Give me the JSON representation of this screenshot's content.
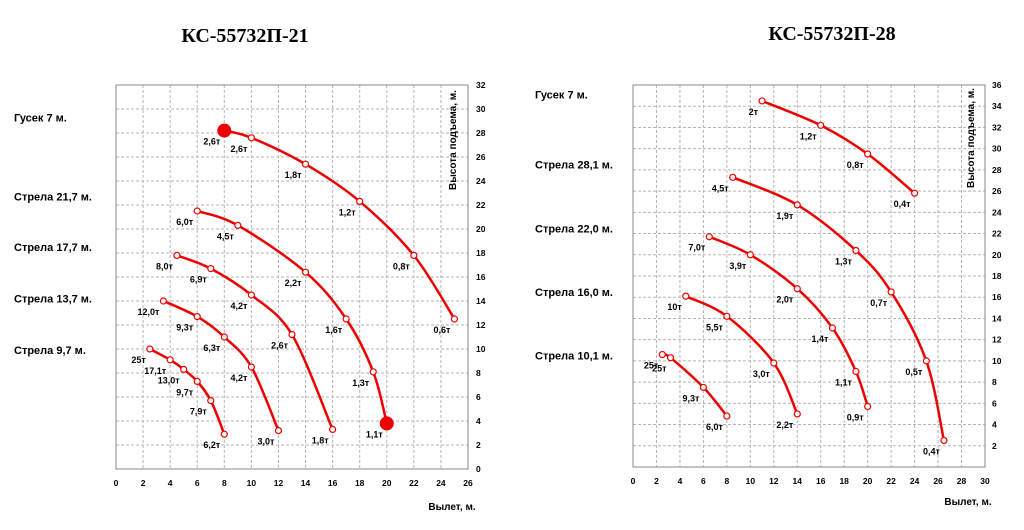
{
  "chart_data": [
    {
      "type": "line",
      "title": "КС-55732П-21",
      "xlabel": "Вылет, м.",
      "ylabel": "Высота подъема, м.",
      "xlim": [
        0,
        26
      ],
      "ylim": [
        0,
        32
      ],
      "xticks": [
        "0",
        "2",
        "4",
        "6",
        "8",
        "10",
        "12",
        "14",
        "16",
        "18",
        "20",
        "22",
        "24",
        "26"
      ],
      "yticks": [
        "0",
        "2",
        "4",
        "6",
        "8",
        "10",
        "12",
        "14",
        "16",
        "18",
        "20",
        "22",
        "24",
        "26",
        "28",
        "30",
        "32"
      ],
      "grid": true,
      "series": [
        {
          "name": "Гусек 7 м.",
          "name_y": 29.3,
          "points": [
            {
              "x": 8,
              "y": 28.2,
              "label": "2,6т"
            },
            {
              "x": 10,
              "y": 27.6,
              "label": "2,6т"
            },
            {
              "x": 14,
              "y": 25.4,
              "label": "1,8т"
            },
            {
              "x": 18,
              "y": 22.3,
              "label": "1,2т"
            },
            {
              "x": 22,
              "y": 17.8,
              "label": "0,8т"
            },
            {
              "x": 25,
              "y": 12.5,
              "label": "0,6т"
            }
          ]
        },
        {
          "name": "Стрела 21,7 м.",
          "name_y": 22.7,
          "points": [
            {
              "x": 6,
              "y": 21.5,
              "label": "6,0т"
            },
            {
              "x": 9,
              "y": 20.3,
              "label": "4,5т"
            },
            {
              "x": 14,
              "y": 16.4,
              "label": "2,2т"
            },
            {
              "x": 17,
              "y": 12.5,
              "label": "1,6т"
            },
            {
              "x": 19,
              "y": 8.1,
              "label": "1,3т"
            },
            {
              "x": 20,
              "y": 3.8,
              "label": "1,1т"
            }
          ]
        },
        {
          "name": "Стрела 17,7 м.",
          "name_y": 18.5,
          "points": [
            {
              "x": 4.5,
              "y": 17.8,
              "label": "8,0т"
            },
            {
              "x": 7,
              "y": 16.7,
              "label": "6,9т"
            },
            {
              "x": 10,
              "y": 14.5,
              "label": "4,2т"
            },
            {
              "x": 13,
              "y": 11.2,
              "label": "2,6т"
            },
            {
              "x": 16,
              "y": 3.3,
              "label": "1,8т"
            }
          ]
        },
        {
          "name": "Стрела 13,7 м.",
          "name_y": 14.2,
          "points": [
            {
              "x": 3.5,
              "y": 14.0,
              "label": "12,0т"
            },
            {
              "x": 6,
              "y": 12.7,
              "label": "9,3т"
            },
            {
              "x": 8,
              "y": 11.0,
              "label": "6,3т"
            },
            {
              "x": 10,
              "y": 8.5,
              "label": "4,2т"
            },
            {
              "x": 12,
              "y": 3.2,
              "label": "3,0т"
            }
          ]
        },
        {
          "name": "Стрела 9,7 м.",
          "name_y": 9.9,
          "points": [
            {
              "x": 2.5,
              "y": 10.0,
              "label": "25т"
            },
            {
              "x": 4,
              "y": 9.1,
              "label": "17,1т"
            },
            {
              "x": 5,
              "y": 8.3,
              "label": "13,0т"
            },
            {
              "x": 6,
              "y": 7.3,
              "label": "9,7т"
            },
            {
              "x": 7,
              "y": 5.7,
              "label": "7,9т"
            },
            {
              "x": 8,
              "y": 2.9,
              "label": "6,2т"
            }
          ]
        }
      ],
      "highlights": [
        {
          "x": 8,
          "y": 28.2
        },
        {
          "x": 20,
          "y": 3.8
        }
      ]
    },
    {
      "type": "line",
      "title": "КС-55732П-28",
      "xlabel": "Вылет, м.",
      "ylabel": "Высота подъема, м.",
      "xlim": [
        0,
        30
      ],
      "ylim": [
        0,
        36
      ],
      "xticks": [
        "0",
        "2",
        "4",
        "6",
        "8",
        "10",
        "12",
        "14",
        "16",
        "18",
        "20",
        "22",
        "24",
        "26",
        "28",
        "30"
      ],
      "yticks": [
        "",
        "2",
        "4",
        "6",
        "8",
        "10",
        "12",
        "14",
        "16",
        "18",
        "20",
        "22",
        "24",
        "26",
        "28",
        "30",
        "32",
        "34",
        "36"
      ],
      "grid": true,
      "series": [
        {
          "name": "Гусек 7 м.",
          "name_y": 35.1,
          "points": [
            {
              "x": 11,
              "y": 34.5,
              "label": "2т"
            },
            {
              "x": 16,
              "y": 32.2,
              "label": "1,2т"
            },
            {
              "x": 20,
              "y": 29.5,
              "label": "0,8т"
            },
            {
              "x": 24,
              "y": 25.8,
              "label": "0,4т"
            }
          ]
        },
        {
          "name": "Стрела 28,1 м.",
          "name_y": 28.5,
          "points": [
            {
              "x": 8.5,
              "y": 27.3,
              "label": "4,5т"
            },
            {
              "x": 14,
              "y": 24.7,
              "label": "1,9т"
            },
            {
              "x": 19,
              "y": 20.4,
              "label": "1,3т"
            },
            {
              "x": 22,
              "y": 16.5,
              "label": "0,7т"
            },
            {
              "x": 25,
              "y": 10.0,
              "label": "0,5т"
            },
            {
              "x": 26.5,
              "y": 2.5,
              "label": "0,4т"
            }
          ]
        },
        {
          "name": "Стрела 22,0 м.",
          "name_y": 22.5,
          "points": [
            {
              "x": 6.5,
              "y": 21.7,
              "label": "7,0т"
            },
            {
              "x": 10,
              "y": 20.0,
              "label": "3,9т"
            },
            {
              "x": 14,
              "y": 16.8,
              "label": "2,0т"
            },
            {
              "x": 17,
              "y": 13.1,
              "label": "1,4т"
            },
            {
              "x": 19,
              "y": 9.0,
              "label": "1,1т"
            },
            {
              "x": 20,
              "y": 5.7,
              "label": "0,9т"
            }
          ]
        },
        {
          "name": "Стрела 16,0 м.",
          "name_y": 16.5,
          "points": [
            {
              "x": 4.5,
              "y": 16.1,
              "label": "10т"
            },
            {
              "x": 8,
              "y": 14.2,
              "label": "5,5т"
            },
            {
              "x": 12,
              "y": 9.8,
              "label": "3,0т"
            },
            {
              "x": 14,
              "y": 5.0,
              "label": "2,2т"
            }
          ]
        },
        {
          "name": "Стрела 10,1 м.",
          "name_y": 10.5,
          "points": [
            {
              "x": 2.5,
              "y": 10.6,
              "label": "25т"
            },
            {
              "x": 3.2,
              "y": 10.3,
              "label": "25т"
            },
            {
              "x": 6,
              "y": 7.5,
              "label": "9,3т"
            },
            {
              "x": 8,
              "y": 4.8,
              "label": "6,0т"
            }
          ]
        }
      ],
      "highlights": []
    }
  ]
}
